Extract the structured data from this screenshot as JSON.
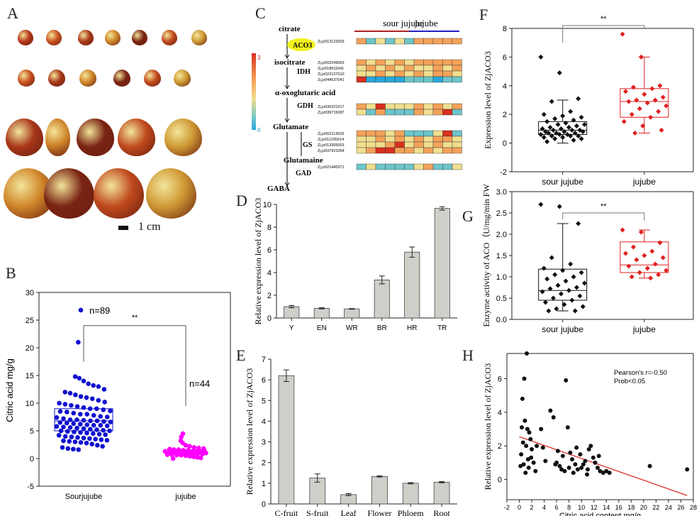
{
  "panel_labels": {
    "A": "A",
    "B": "B",
    "C": "C",
    "D": "D",
    "E": "E",
    "F": "F",
    "G": "G",
    "H": "H"
  },
  "panelA": {
    "scale_label": "1 cm"
  },
  "colors": {
    "blue": "#1010d0",
    "magenta": "#ff00ff",
    "gray_bar": "#cfcfca",
    "red_box": "#e02020",
    "black": "#111111",
    "regression": "#e03030",
    "heat_red": "#d7301f",
    "heat_orange": "#f4a259",
    "heat_yellow": "#f1df8f",
    "heat_cyan": "#6cc5c9",
    "heat_blue": "#2aa7d9"
  },
  "panelC": {
    "group_labels": [
      "sour jujube",
      "jujube"
    ],
    "metabolites": [
      "citrate",
      "isocitrate",
      "α-oxoglutaric acid",
      "Glutamate",
      "Glutamaine",
      "GABA"
    ],
    "enzymes": [
      "ACO3",
      "IDH",
      "GDH",
      "GS",
      "GAD"
    ],
    "colorbar_ticks": [
      "3",
      "0"
    ],
    "gene_groups": [
      {
        "enzyme": "ACO3",
        "genes": [
          "Zj.jz013123003"
        ]
      },
      {
        "enzyme": "IDH",
        "genes": [
          "Zj.jz002249063",
          "Zj.jz018011041",
          "Zj.jz022127010",
          "Zj.jz044537041"
        ]
      },
      {
        "enzyme": "GDH",
        "genes": [
          "Zj.jz036321017",
          "Zj.jz039715087"
        ]
      },
      {
        "enzyme": "GS",
        "genes": [
          "Zj.jz002113033",
          "Zj.jz011205014",
          "Zj.jz013305003",
          "Zj.jz037921054"
        ]
      },
      {
        "enzyme": "GAD",
        "genes": [
          "Zj.jz021445371"
        ]
      }
    ],
    "heatmap_rows": [
      [
        "o",
        "c",
        "y",
        "c",
        "y",
        "c",
        "o",
        "o",
        "o",
        "o",
        "o"
      ],
      [
        "o",
        "y",
        "o",
        "y",
        "o",
        "y",
        "o",
        "o",
        "o",
        "o",
        "o"
      ],
      [
        "y",
        "o",
        "y",
        "o",
        "y",
        "o",
        "y",
        "y",
        "o",
        "y",
        "o"
      ],
      [
        "y",
        "y",
        "o",
        "y",
        "o",
        "y",
        "o",
        "y",
        "o",
        "o",
        "y"
      ],
      [
        "r",
        "b",
        "b",
        "b",
        "b",
        "c",
        "c",
        "c",
        "b",
        "c",
        "c"
      ],
      [
        "o",
        "y",
        "r",
        "y",
        "y",
        "y",
        "o",
        "y",
        "o",
        "y",
        "o"
      ],
      [
        "y",
        "c",
        "o",
        "c",
        "c",
        "c",
        "o",
        "y",
        "o",
        "r",
        "c"
      ],
      [
        "o",
        "o",
        "o",
        "y",
        "o",
        "c",
        "c",
        "c",
        "y",
        "r",
        "c"
      ],
      [
        "y",
        "y",
        "o",
        "y",
        "o",
        "y",
        "o",
        "y",
        "o",
        "o",
        "y"
      ],
      [
        "y",
        "y",
        "y",
        "o",
        "r",
        "y",
        "o",
        "y",
        "o",
        "y",
        "y"
      ],
      [
        "y",
        "o",
        "r",
        "r",
        "o",
        "o",
        "y",
        "o",
        "y",
        "o",
        "o"
      ],
      [
        "c",
        "y",
        "c",
        "c",
        "c",
        "c",
        "y",
        "o",
        "c",
        "c",
        "y"
      ]
    ]
  },
  "chart_data": [
    {
      "id": "B",
      "type": "scatter",
      "title": "",
      "xlabel": "",
      "ylabel": "Citric acid mg/g",
      "categories": [
        "Sourjujube",
        "jujube"
      ],
      "ylim": [
        -5,
        30
      ],
      "yticks": [
        -5,
        0,
        5,
        10,
        15,
        20,
        25,
        30
      ],
      "annotations": [
        "**",
        "n=89",
        "n=44"
      ],
      "series": [
        {
          "category": "Sourjujube",
          "box": {
            "q1": 5.0,
            "median": 6.8,
            "q3": 9.0
          },
          "values": [
            26.8,
            21,
            14.8,
            14.5,
            14,
            13.5,
            13.2,
            13,
            12.5,
            12,
            11.8,
            11.5,
            11.2,
            11,
            10.8,
            10.5,
            10.2,
            10,
            9.8,
            9.6,
            9.4,
            9.2,
            9,
            9,
            8.8,
            8.6,
            8.5,
            8.4,
            8.2,
            8,
            8,
            7.8,
            7.6,
            7.5,
            7.4,
            7.2,
            7,
            7,
            6.9,
            6.8,
            6.8,
            6.7,
            6.6,
            6.5,
            6.4,
            6.3,
            6.2,
            6.1,
            6,
            6,
            5.9,
            5.8,
            5.7,
            5.6,
            5.5,
            5.4,
            5.3,
            5.2,
            5.1,
            5,
            5,
            4.9,
            4.8,
            4.7,
            4.6,
            4.5,
            4.4,
            4.3,
            4.2,
            4,
            3.9,
            3.8,
            3.7,
            3.6,
            3.5,
            3.4,
            3.3,
            3.2,
            3.1,
            3,
            2.9,
            2.8,
            2.6,
            2.4,
            2.2,
            2,
            1.8,
            1.7,
            1.6
          ]
        },
        {
          "category": "jujube",
          "box": {
            "q1": 0.9,
            "median": 1.2,
            "q3": 1.6
          },
          "values": [
            4.5,
            3.9,
            3.2,
            2.8,
            2.4,
            2.2,
            2.0,
            1.9,
            1.8,
            1.7,
            1.6,
            1.6,
            1.5,
            1.5,
            1.4,
            1.4,
            1.3,
            1.3,
            1.3,
            1.2,
            1.2,
            1.2,
            1.1,
            1.1,
            1.1,
            1.0,
            1.0,
            1.0,
            0.9,
            0.9,
            0.9,
            0.8,
            0.8,
            0.8,
            0.7,
            0.7,
            0.6,
            0.6,
            0.5,
            0.4,
            0.3,
            0.2,
            0.1,
            0.0
          ]
        }
      ]
    },
    {
      "id": "D",
      "type": "bar",
      "title": "",
      "xlabel": "",
      "ylabel": "Relative expression level of ZjACO3",
      "categories": [
        "Y",
        "EN",
        "WR",
        "BR",
        "HR",
        "TR"
      ],
      "values": [
        1.0,
        0.85,
        0.8,
        3.35,
        5.8,
        9.65
      ],
      "errors": [
        0.1,
        0.05,
        0.03,
        0.35,
        0.45,
        0.15
      ],
      "ylim": [
        0,
        10
      ],
      "yticks": [
        0,
        2,
        4,
        6,
        8,
        10
      ]
    },
    {
      "id": "E",
      "type": "bar",
      "title": "",
      "xlabel": "",
      "ylabel": "Relative expression  level of ZjACO3",
      "categories": [
        "C-fruit",
        "S-fruit",
        "Leaf",
        "Flower",
        "Phloem",
        "Root"
      ],
      "values": [
        6.2,
        1.25,
        0.45,
        1.33,
        1.0,
        1.05
      ],
      "errors": [
        0.28,
        0.2,
        0.05,
        0.03,
        0.03,
        0.03
      ],
      "ylim": [
        0,
        7
      ],
      "yticks": [
        0,
        1,
        2,
        3,
        4,
        5,
        6,
        7
      ]
    },
    {
      "id": "F",
      "type": "scatter",
      "title": "",
      "xlabel": "",
      "ylabel": "Expression level of ZjACO3",
      "categories": [
        "sour jujube",
        "jujube"
      ],
      "ylim": [
        -2,
        8
      ],
      "yticks": [
        -2,
        0,
        2,
        4,
        6,
        8
      ],
      "annotations": [
        "**"
      ],
      "series": [
        {
          "category": "sour jujube",
          "box": {
            "whisker_low": 0.0,
            "q1": 0.6,
            "median": 0.9,
            "q3": 1.5,
            "whisker_high": 3.0
          },
          "values": [
            6.0,
            4.9,
            3.1,
            2.9,
            2.2,
            2.0,
            1.9,
            1.8,
            1.7,
            1.6,
            1.5,
            1.4,
            1.3,
            1.3,
            1.2,
            1.1,
            1.1,
            1.0,
            1.0,
            0.9,
            0.9,
            0.9,
            0.8,
            0.8,
            0.8,
            0.7,
            0.7,
            0.7,
            0.6,
            0.6,
            0.6,
            0.5,
            0.5,
            0.5,
            0.4,
            0.4,
            0.3,
            0.3,
            0.2,
            0.1
          ]
        },
        {
          "category": "jujube",
          "box": {
            "whisker_low": 0.7,
            "q1": 1.8,
            "median": 2.9,
            "q3": 3.8,
            "whisker_high": 6.0
          },
          "values": [
            7.6,
            6.0,
            4.0,
            3.9,
            3.8,
            3.6,
            3.4,
            3.2,
            3.0,
            3.0,
            2.9,
            2.8,
            2.6,
            2.4,
            2.2,
            2.0,
            1.8,
            1.5,
            1.2,
            0.9,
            0.7
          ]
        }
      ]
    },
    {
      "id": "G",
      "type": "scatter",
      "title": "",
      "xlabel": "",
      "ylabel": "Enzyme activity of ACO（U/mg/min FW",
      "categories": [
        "sour jujube",
        "jujube"
      ],
      "ylim": [
        0.0,
        3.0
      ],
      "yticks": [
        0.0,
        0.5,
        1.0,
        1.5,
        2.0,
        2.5,
        3.0
      ],
      "annotations": [
        "**"
      ],
      "series": [
        {
          "category": "sour jujube",
          "box": {
            "whisker_low": 0.2,
            "q1": 0.45,
            "median": 0.68,
            "q3": 1.18,
            "whisker_high": 2.25
          },
          "values": [
            2.7,
            2.65,
            2.25,
            1.45,
            1.3,
            1.2,
            1.15,
            1.1,
            1.05,
            1.0,
            0.95,
            0.9,
            0.85,
            0.8,
            0.75,
            0.72,
            0.68,
            0.65,
            0.6,
            0.55,
            0.5,
            0.45,
            0.4,
            0.35,
            0.3,
            0.25,
            0.2,
            0.2
          ]
        },
        {
          "category": "jujube",
          "box": {
            "whisker_low": 0.97,
            "q1": 1.1,
            "median": 1.28,
            "q3": 1.82,
            "whisker_high": 2.1
          },
          "values": [
            2.1,
            2.05,
            1.8,
            1.7,
            1.6,
            1.55,
            1.5,
            1.45,
            1.4,
            1.3,
            1.25,
            1.2,
            1.15,
            1.1,
            1.05,
            1.0,
            0.97
          ]
        }
      ]
    },
    {
      "id": "H",
      "type": "scatter",
      "title": "",
      "xlabel": "Citric acid content mg/g",
      "ylabel": "Relative expression  level of ZjACO3",
      "xlim": [
        -2,
        28
      ],
      "ylim": [
        -1.2,
        7.5
      ],
      "xticks": [
        -2,
        0,
        2,
        4,
        6,
        8,
        10,
        12,
        14,
        16,
        18,
        20,
        22,
        24,
        26,
        28
      ],
      "yticks": [
        0,
        2,
        4,
        6
      ],
      "annotations": [
        "Pearson's r=-0.50",
        "Prob<0.05"
      ],
      "regression": {
        "x": [
          0,
          27
        ],
        "y": [
          2.55,
          -0.95
        ]
      },
      "points": [
        [
          1.2,
          7.5
        ],
        [
          0.8,
          6.0
        ],
        [
          0.5,
          4.8
        ],
        [
          0.4,
          3.1
        ],
        [
          0.9,
          3.5
        ],
        [
          1.3,
          3.0
        ],
        [
          1.6,
          2.8
        ],
        [
          0.6,
          2.2
        ],
        [
          1.1,
          2.0
        ],
        [
          0.3,
          1.5
        ],
        [
          1.4,
          1.2
        ],
        [
          0.7,
          0.9
        ],
        [
          1.8,
          2.4
        ],
        [
          2.0,
          1.8
        ],
        [
          1.5,
          0.7
        ],
        [
          2.3,
          1.0
        ],
        [
          1.9,
          1.3
        ],
        [
          2.8,
          2.0
        ],
        [
          3.5,
          3.0
        ],
        [
          3.8,
          1.9
        ],
        [
          5.0,
          4.1
        ],
        [
          5.5,
          3.7
        ],
        [
          6.0,
          1.0
        ],
        [
          6.5,
          0.8
        ],
        [
          7.0,
          1.4
        ],
        [
          7.5,
          5.9
        ],
        [
          7.8,
          3.1
        ],
        [
          6.8,
          0.6
        ],
        [
          7.3,
          0.5
        ],
        [
          8.0,
          0.7
        ],
        [
          8.5,
          1.2
        ],
        [
          8.7,
          0.4
        ],
        [
          9.0,
          0.9
        ],
        [
          9.4,
          0.6
        ],
        [
          9.8,
          1.5
        ],
        [
          10.0,
          0.7
        ],
        [
          10.3,
          0.9
        ],
        [
          10.6,
          1.1
        ],
        [
          10.9,
          0.3
        ],
        [
          11.2,
          1.8
        ],
        [
          11.5,
          2.0
        ],
        [
          11.9,
          1.3
        ],
        [
          12.2,
          1.0
        ],
        [
          12.6,
          0.7
        ],
        [
          13.0,
          0.5
        ],
        [
          13.5,
          0.4
        ],
        [
          14.0,
          0.5
        ],
        [
          14.5,
          0.4
        ],
        [
          21.0,
          0.8
        ],
        [
          27.0,
          0.6
        ],
        [
          2.6,
          0.5
        ],
        [
          4.2,
          1.1
        ],
        [
          6.2,
          1.7
        ],
        [
          8.2,
          1.6
        ],
        [
          11.0,
          0.6
        ],
        [
          9.2,
          1.9
        ],
        [
          0.2,
          0.8
        ],
        [
          1.0,
          0.4
        ],
        [
          12.8,
          1.4
        ],
        [
          5.8,
          0.9
        ]
      ]
    }
  ]
}
